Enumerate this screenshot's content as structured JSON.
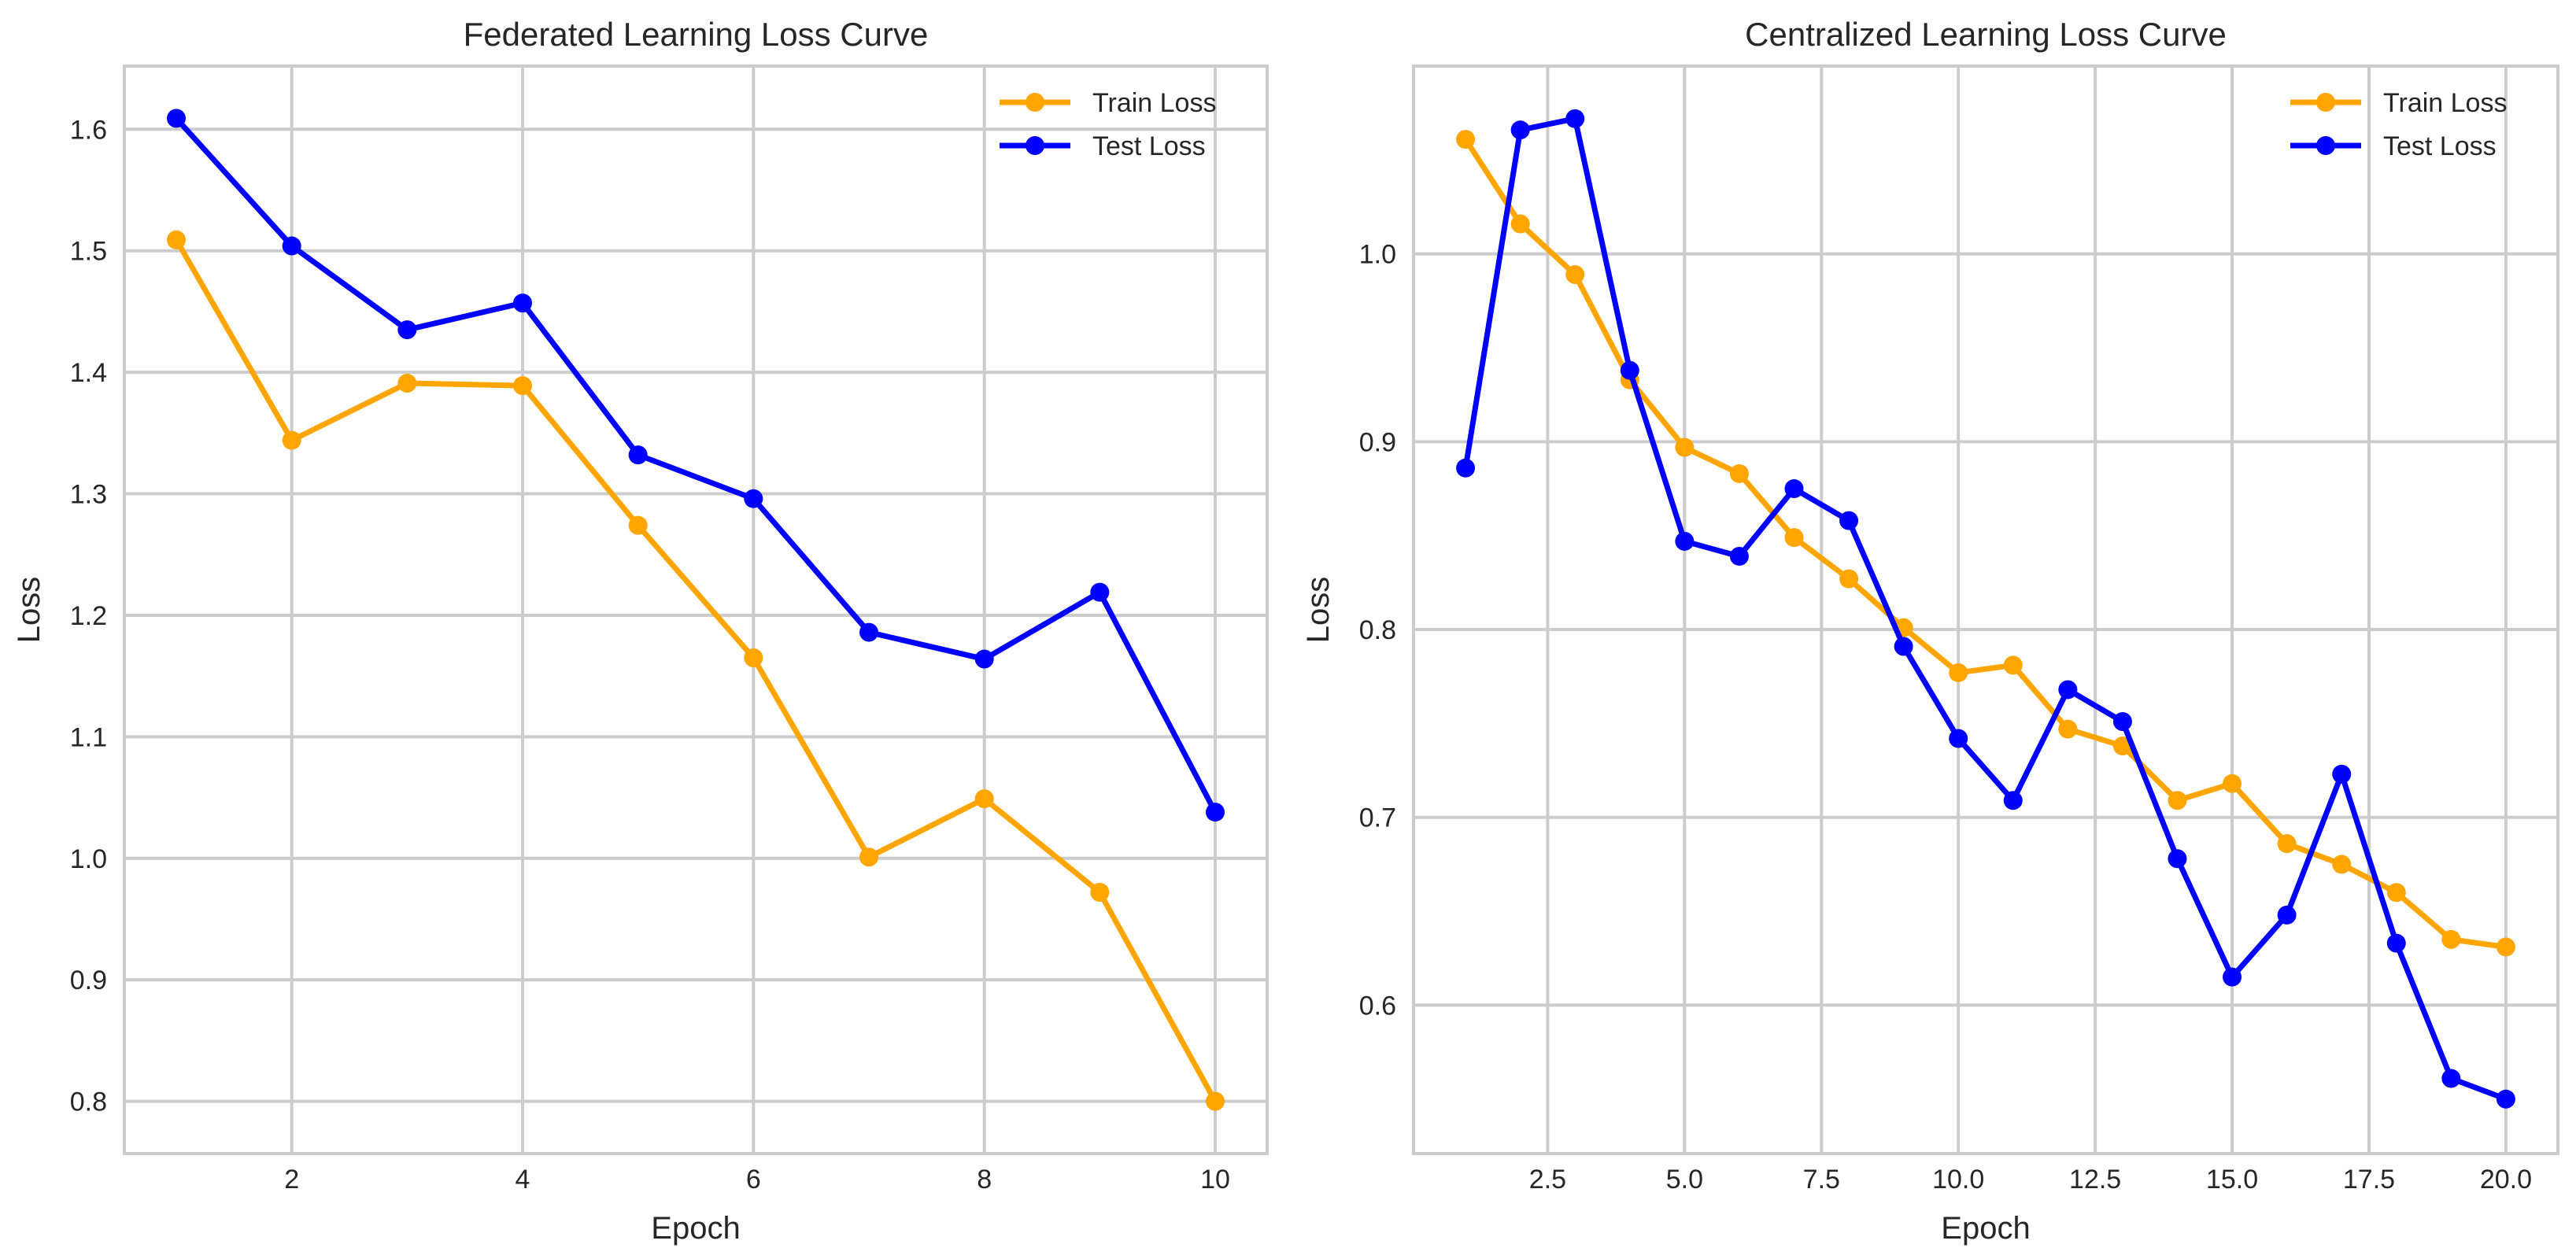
{
  "chart_data": [
    {
      "type": "line",
      "title": "Federated Learning Loss Curve",
      "xlabel": "Epoch",
      "ylabel": "Loss",
      "xlim": [
        0.55,
        10.45
      ],
      "ylim": [
        0.757,
        1.652
      ],
      "xticks": [
        2,
        4,
        6,
        8,
        10
      ],
      "xtick_labels": [
        "2",
        "4",
        "6",
        "8",
        "10"
      ],
      "yticks": [
        0.8,
        0.9,
        1.0,
        1.1,
        1.2,
        1.3,
        1.4,
        1.5,
        1.6
      ],
      "ytick_labels": [
        "0.8",
        "0.9",
        "1.0",
        "1.1",
        "1.2",
        "1.3",
        "1.4",
        "1.5",
        "1.6"
      ],
      "grid": true,
      "legend_position": "top-right",
      "x": [
        1,
        2,
        3,
        4,
        5,
        6,
        7,
        8,
        9,
        10
      ],
      "series": [
        {
          "name": "Train Loss",
          "color": "#ffa500",
          "values": [
            1.509,
            1.344,
            1.391,
            1.389,
            1.274,
            1.165,
            1.001,
            1.049,
            0.972,
            0.8
          ]
        },
        {
          "name": "Test Loss",
          "color": "#0000ff",
          "values": [
            1.609,
            1.504,
            1.435,
            1.457,
            1.332,
            1.296,
            1.186,
            1.164,
            1.219,
            1.038
          ]
        }
      ]
    },
    {
      "type": "line",
      "title": "Centralized Learning Loss Curve",
      "xlabel": "Epoch",
      "ylabel": "Loss",
      "xlim": [
        0.05,
        20.95
      ],
      "ylim": [
        0.521,
        1.1
      ],
      "xticks": [
        2.5,
        5.0,
        7.5,
        10.0,
        12.5,
        15.0,
        17.5,
        20.0
      ],
      "xtick_labels": [
        "2.5",
        "5.0",
        "7.5",
        "10.0",
        "12.5",
        "15.0",
        "17.5",
        "20.0"
      ],
      "yticks": [
        0.6,
        0.7,
        0.8,
        0.9,
        1.0
      ],
      "ytick_labels": [
        "0.6",
        "0.7",
        "0.8",
        "0.9",
        "1.0"
      ],
      "grid": true,
      "legend_position": "top-right",
      "x": [
        1,
        2,
        3,
        4,
        5,
        6,
        7,
        8,
        9,
        10,
        11,
        12,
        13,
        14,
        15,
        16,
        17,
        18,
        19,
        20
      ],
      "series": [
        {
          "name": "Train Loss",
          "color": "#ffa500",
          "values": [
            1.061,
            1.016,
            0.989,
            0.933,
            0.897,
            0.883,
            0.849,
            0.827,
            0.801,
            0.777,
            0.781,
            0.747,
            0.738,
            0.709,
            0.718,
            0.686,
            0.675,
            0.66,
            0.635,
            0.631
          ]
        },
        {
          "name": "Test Loss",
          "color": "#0000ff",
          "values": [
            0.886,
            1.066,
            1.072,
            0.938,
            0.847,
            0.839,
            0.875,
            0.858,
            0.791,
            0.742,
            0.709,
            0.768,
            0.751,
            0.678,
            0.615,
            0.648,
            0.723,
            0.633,
            0.561,
            0.55
          ]
        }
      ]
    }
  ]
}
